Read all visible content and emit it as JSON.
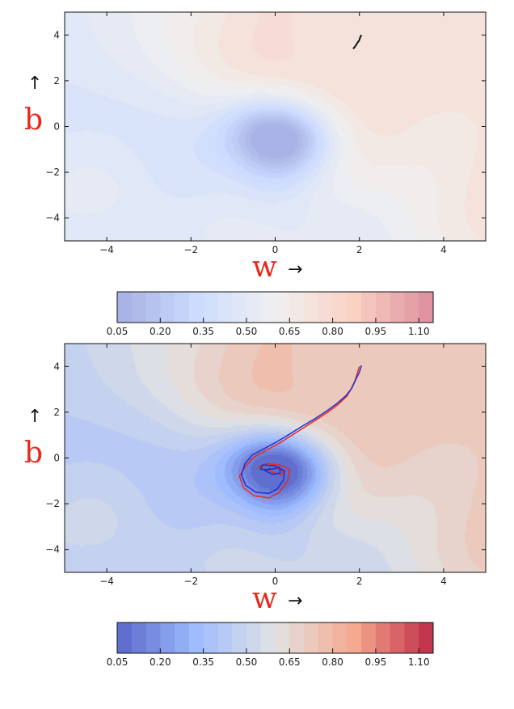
{
  "chart_data": [
    {
      "type": "contour",
      "xlabel": "w",
      "ylabel": "b",
      "xlabel_arrow": "→",
      "ylabel_arrow": "↑",
      "xlim": [
        -5,
        5
      ],
      "ylim": [
        -5,
        5
      ],
      "xticks": [
        -4,
        -2,
        0,
        2,
        4
      ],
      "yticks": [
        4,
        2,
        0,
        -2,
        -4
      ],
      "xtick_labels": [
        "−4",
        "−2",
        "0",
        "2",
        "4"
      ],
      "ytick_labels": [
        "4",
        "2",
        "0",
        "−2",
        "−4"
      ],
      "levels": [
        0.05,
        0.1,
        0.15,
        0.2,
        0.25,
        0.3,
        0.35,
        0.4,
        0.45,
        0.5,
        0.55,
        0.6,
        0.65,
        0.7,
        0.75,
        0.8,
        0.85,
        0.9,
        0.95,
        1.0,
        1.05,
        1.1,
        1.15
      ],
      "opacity": 0.45,
      "colormap": "coolwarm",
      "label_color": "#e8281c",
      "series": [
        {
          "color": "#111111",
          "points": [
            [
              1.85,
              3.4
            ],
            [
              1.9,
              3.5
            ],
            [
              1.95,
              3.65
            ],
            [
              2.0,
              3.78
            ],
            [
              2.02,
              3.9
            ],
            [
              2.05,
              4.0
            ]
          ]
        }
      ],
      "colorbar": {
        "ticks": [
          0.05,
          0.2,
          0.35,
          0.5,
          0.65,
          0.8,
          0.95,
          1.1
        ],
        "tick_labels": [
          "0.05",
          "0.20",
          "0.35",
          "0.50",
          "0.65",
          "0.80",
          "0.95",
          "1.10"
        ],
        "range": [
          0.05,
          1.15
        ]
      }
    },
    {
      "type": "contour",
      "xlabel": "w",
      "ylabel": "b",
      "xlabel_arrow": "→",
      "ylabel_arrow": "↑",
      "xlim": [
        -5,
        5
      ],
      "ylim": [
        -5,
        5
      ],
      "xticks": [
        -4,
        -2,
        0,
        2,
        4
      ],
      "yticks": [
        4,
        2,
        0,
        -2,
        -4
      ],
      "xtick_labels": [
        "−4",
        "−2",
        "0",
        "2",
        "4"
      ],
      "ytick_labels": [
        "4",
        "2",
        "0",
        "−2",
        "−4"
      ],
      "levels": [
        0.05,
        0.1,
        0.15,
        0.2,
        0.25,
        0.3,
        0.35,
        0.4,
        0.45,
        0.5,
        0.55,
        0.6,
        0.65,
        0.7,
        0.75,
        0.8,
        0.85,
        0.9,
        0.95,
        1.0,
        1.05,
        1.1,
        1.15
      ],
      "opacity": 0.85,
      "colormap": "coolwarm",
      "label_color": "#e8281c",
      "series": [
        {
          "color": "#e8281c",
          "points": [
            [
              2.0,
              4.0
            ],
            [
              1.95,
              3.7
            ],
            [
              1.9,
              3.4
            ],
            [
              1.8,
              3.0
            ],
            [
              1.7,
              2.7
            ],
            [
              1.5,
              2.35
            ],
            [
              1.25,
              2.0
            ],
            [
              1.0,
              1.7
            ],
            [
              0.7,
              1.35
            ],
            [
              0.4,
              1.0
            ],
            [
              0.1,
              0.65
            ],
            [
              -0.2,
              0.35
            ],
            [
              -0.5,
              0.05
            ],
            [
              -0.7,
              -0.35
            ],
            [
              -0.85,
              -0.8
            ],
            [
              -0.75,
              -1.3
            ],
            [
              -0.5,
              -1.65
            ],
            [
              -0.15,
              -1.75
            ],
            [
              0.1,
              -1.5
            ],
            [
              0.3,
              -1.0
            ],
            [
              0.35,
              -0.5
            ],
            [
              0.1,
              -0.3
            ],
            [
              -0.2,
              -0.25
            ],
            [
              -0.4,
              -0.4
            ],
            [
              -0.2,
              -0.55
            ],
            [
              0.05,
              -0.45
            ],
            [
              0.2,
              -0.6
            ],
            [
              0.15,
              -0.75
            ],
            [
              -0.1,
              -0.6
            ]
          ]
        },
        {
          "color": "#1f2fd6",
          "points": [
            [
              2.05,
              4.05
            ],
            [
              2.0,
              3.75
            ],
            [
              1.92,
              3.45
            ],
            [
              1.82,
              3.05
            ],
            [
              1.68,
              2.72
            ],
            [
              1.48,
              2.4
            ],
            [
              1.22,
              2.05
            ],
            [
              0.95,
              1.72
            ],
            [
              0.65,
              1.4
            ],
            [
              0.35,
              1.05
            ],
            [
              0.05,
              0.72
            ],
            [
              -0.25,
              0.42
            ],
            [
              -0.55,
              0.12
            ],
            [
              -0.72,
              -0.25
            ],
            [
              -0.8,
              -0.75
            ],
            [
              -0.7,
              -1.2
            ],
            [
              -0.45,
              -1.5
            ],
            [
              -0.15,
              -1.55
            ],
            [
              0.05,
              -1.35
            ],
            [
              0.2,
              -0.95
            ],
            [
              0.22,
              -0.55
            ],
            [
              0.0,
              -0.35
            ],
            [
              -0.3,
              -0.3
            ],
            [
              -0.35,
              -0.5
            ],
            [
              -0.1,
              -0.5
            ],
            [
              0.1,
              -0.4
            ],
            [
              0.12,
              -0.65
            ],
            [
              -0.05,
              -0.72
            ],
            [
              -0.25,
              -0.55
            ],
            [
              -0.1,
              -0.45
            ]
          ]
        }
      ],
      "colorbar": {
        "ticks": [
          0.05,
          0.2,
          0.35,
          0.5,
          0.65,
          0.8,
          0.95,
          1.1
        ],
        "tick_labels": [
          "0.05",
          "0.20",
          "0.35",
          "0.50",
          "0.65",
          "0.80",
          "0.95",
          "1.10"
        ],
        "range": [
          0.05,
          1.15
        ]
      }
    }
  ]
}
